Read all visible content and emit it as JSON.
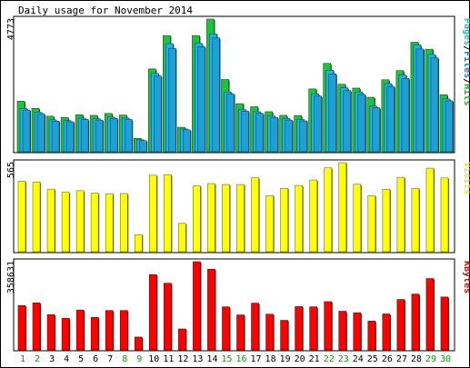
{
  "chart_data": {
    "type": "bar",
    "title": "Daily usage for November 2014",
    "x": [
      "1",
      "2",
      "3",
      "4",
      "5",
      "6",
      "7",
      "8",
      "9",
      "10",
      "11",
      "12",
      "13",
      "14",
      "15",
      "16",
      "17",
      "18",
      "19",
      "20",
      "21",
      "22",
      "23",
      "24",
      "25",
      "26",
      "27",
      "28",
      "29",
      "30"
    ],
    "weekend_days": [
      "1",
      "2",
      "8",
      "9",
      "15",
      "16",
      "22",
      "23",
      "29",
      "30"
    ],
    "panels": [
      {
        "id": "hits",
        "ymax_label": "4773",
        "ymax": 4773,
        "legend": [
          {
            "text": "Pages",
            "color": "#00c8c8"
          },
          {
            "text": "/",
            "color": "#000000"
          },
          {
            "text": "Files",
            "color": "#0080ff"
          },
          {
            "text": "/",
            "color": "#000000"
          },
          {
            "text": "Hits",
            "color": "#00c000"
          }
        ],
        "series": [
          {
            "name": "Hits",
            "color": "#20c040",
            "values": [
              1820,
              1560,
              1280,
              1230,
              1330,
              1310,
              1380,
              1320,
              480,
              2980,
              4180,
              880,
              4180,
              4773,
              2600,
              1730,
              1620,
              1440,
              1310,
              1300,
              2260,
              3180,
              2430,
              2290,
              1960,
              2590,
              2920,
              3940,
              3690,
              2050
            ]
          },
          {
            "name": "Files",
            "color": "#20b0f0",
            "values": [
              1560,
              1420,
              1150,
              1120,
              1210,
              1190,
              1250,
              1210,
              430,
              2820,
              3890,
              820,
              3900,
              4240,
              2150,
              1520,
              1440,
              1290,
              1200,
              1160,
              2080,
              2930,
              2300,
              2150,
              1640,
              2450,
              2760,
              3840,
              3500,
              1900
            ]
          },
          {
            "name": "Pages",
            "color": "#20a0d0",
            "values": [
              1500,
              1360,
              1100,
              1080,
              1160,
              1140,
              1200,
              1160,
              400,
              2730,
              3720,
              790,
              3780,
              4100,
              2080,
              1460,
              1380,
              1230,
              1140,
              1110,
              2000,
              2800,
              2200,
              2060,
              1580,
              2350,
              2640,
              3700,
              3380,
              1830
            ]
          }
        ]
      },
      {
        "id": "visits",
        "ymax_label": "565",
        "ymax": 565,
        "legend": [
          {
            "text": "Visits",
            "color": "#e8e800"
          }
        ],
        "series": [
          {
            "name": "Visits",
            "color": "#ffff00",
            "values": [
              447,
              442,
              397,
              377,
              387,
              372,
              368,
              369,
              108,
              485,
              489,
              180,
              418,
              432,
              426,
              426,
              469,
              356,
              402,
              420,
              455,
              532,
              565,
              428,
              356,
              396,
              472,
              402,
              530,
              468
            ]
          }
        ]
      },
      {
        "id": "kbytes",
        "ymax_label": "358631",
        "ymax": 358631,
        "legend": [
          {
            "text": "KBytes",
            "color": "#e00000"
          }
        ],
        "series": [
          {
            "name": "KBytes",
            "color": "#ff0000",
            "values": [
              180000,
              191000,
              143000,
              128000,
              162000,
              132000,
              160000,
              160000,
              52000,
              306000,
              271000,
              85000,
              358631,
              328000,
              175000,
              142000,
              190000,
              145000,
              120000,
              176000,
              175000,
              196000,
              157000,
              151000,
              117000,
              146000,
              205000,
              227000,
              290000,
              215000
            ]
          }
        ]
      }
    ]
  }
}
